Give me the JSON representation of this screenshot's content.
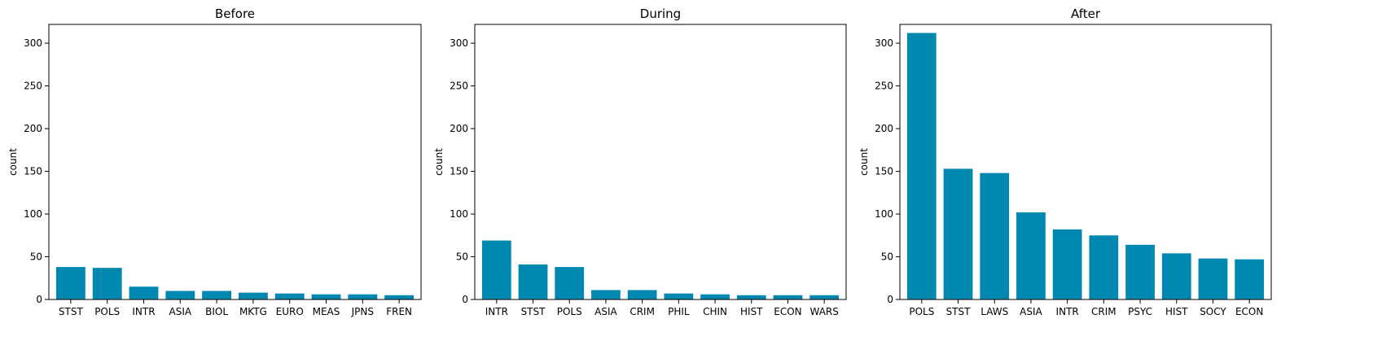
{
  "chart_data": [
    {
      "type": "bar",
      "title": "Before",
      "ylabel": "count",
      "ylim": [
        0,
        322
      ],
      "yticks": [
        0,
        50,
        100,
        150,
        200,
        250,
        300
      ],
      "categories": [
        "STST",
        "POLS",
        "INTR",
        "ASIA",
        "BIOL",
        "MKTG",
        "EURO",
        "MEAS",
        "JPNS",
        "FREN"
      ],
      "values": [
        38,
        37,
        15,
        10,
        10,
        8,
        7,
        6,
        6,
        5
      ],
      "color": "#0088b0"
    },
    {
      "type": "bar",
      "title": "During",
      "ylabel": "count",
      "ylim": [
        0,
        322
      ],
      "yticks": [
        0,
        50,
        100,
        150,
        200,
        250,
        300
      ],
      "categories": [
        "INTR",
        "STST",
        "POLS",
        "ASIA",
        "CRIM",
        "PHIL",
        "CHIN",
        "HIST",
        "ECON",
        "WARS"
      ],
      "values": [
        69,
        41,
        38,
        11,
        11,
        7,
        6,
        5,
        5,
        5
      ],
      "color": "#0088b0"
    },
    {
      "type": "bar",
      "title": "After",
      "ylabel": "count",
      "ylim": [
        0,
        322
      ],
      "yticks": [
        0,
        50,
        100,
        150,
        200,
        250,
        300
      ],
      "categories": [
        "POLS",
        "STST",
        "LAWS",
        "ASIA",
        "INTR",
        "CRIM",
        "PSYC",
        "HIST",
        "SOCY",
        "ECON"
      ],
      "values": [
        312,
        153,
        148,
        102,
        82,
        75,
        64,
        54,
        48,
        47
      ],
      "color": "#0088b0"
    }
  ]
}
